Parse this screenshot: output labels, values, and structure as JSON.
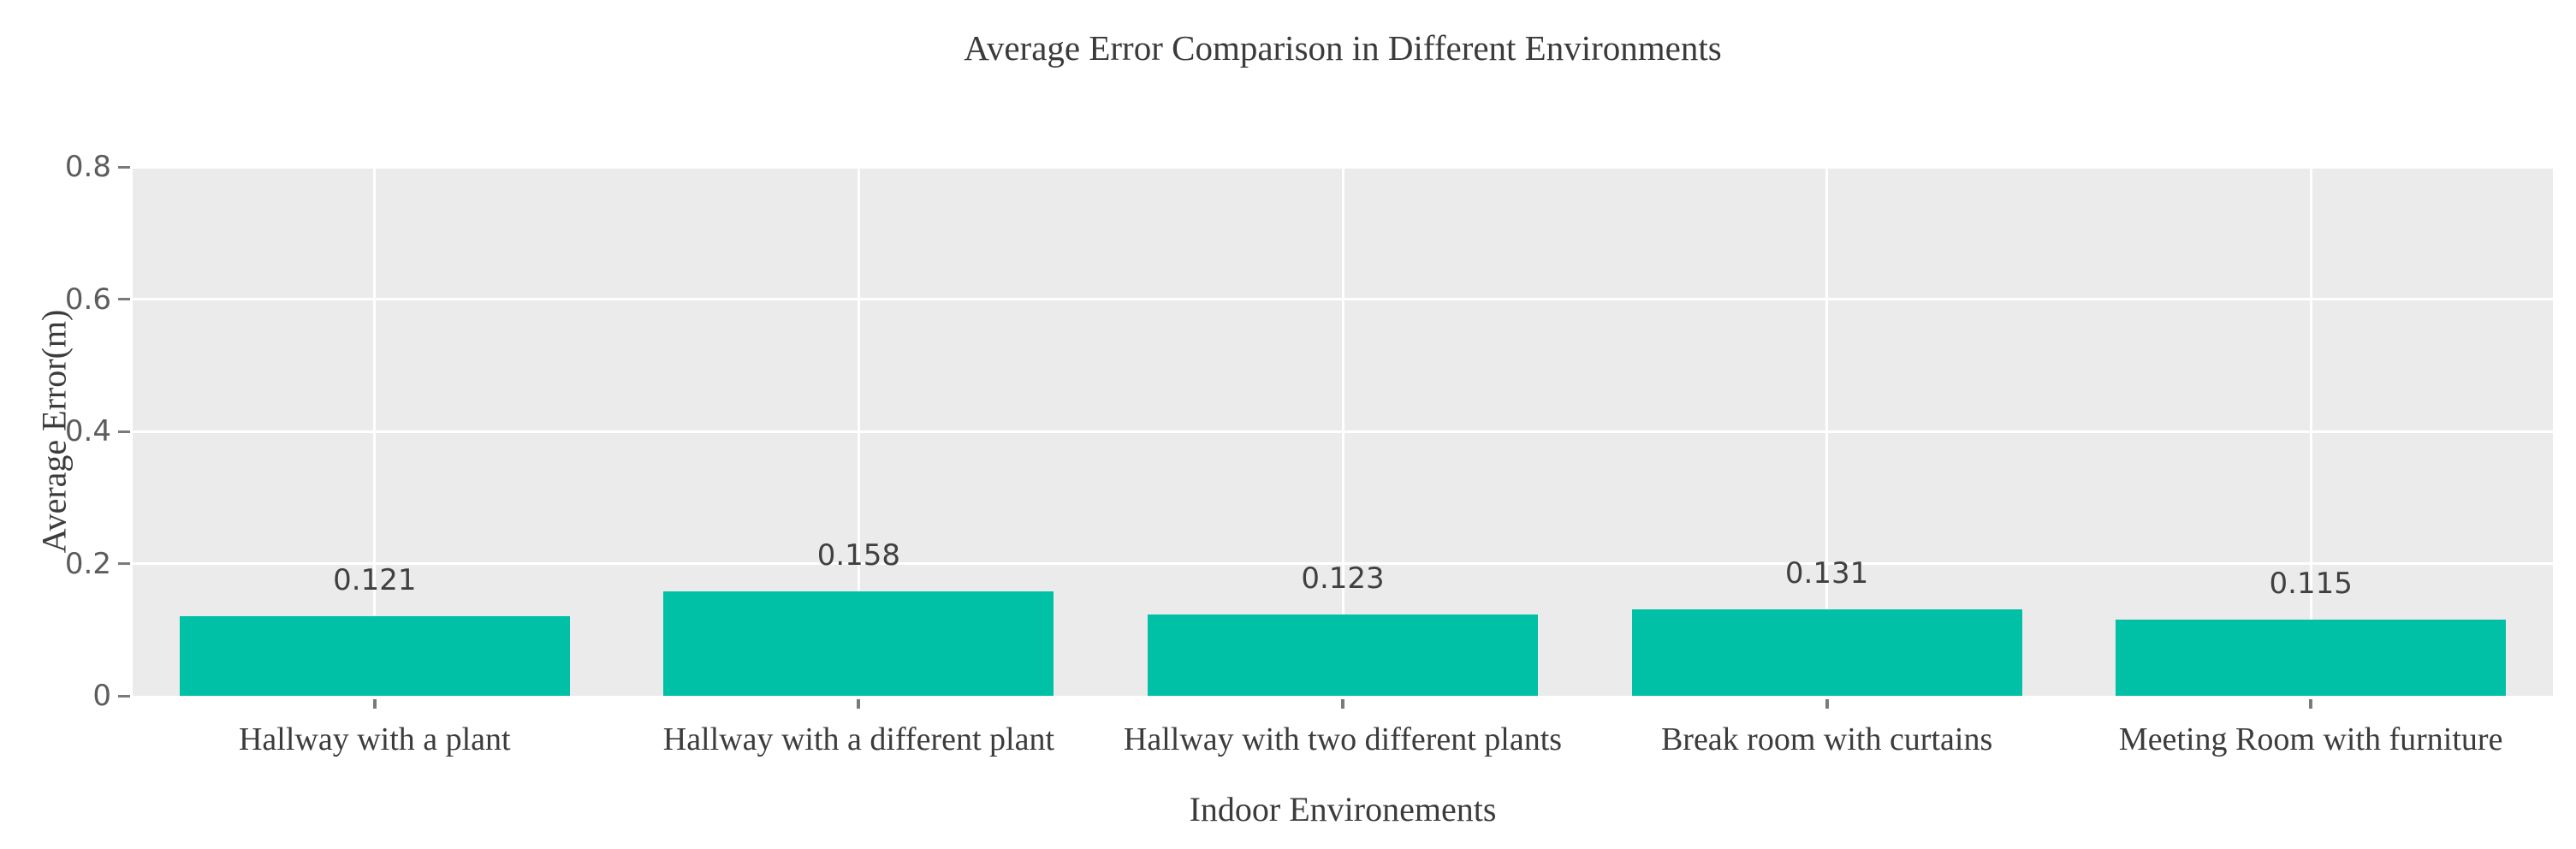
{
  "chart_data": {
    "type": "bar",
    "title": "Average Error Comparison in Different Environments",
    "xlabel": "Indoor Environements",
    "ylabel": "Average Error(m)",
    "categories": [
      "Hallway with a plant",
      "Hallway with a different plant",
      "Hallway with two different plants",
      "Break room with curtains",
      "Meeting Room with furniture"
    ],
    "values": [
      0.121,
      0.158,
      0.123,
      0.131,
      0.115
    ],
    "value_labels": [
      "0.121",
      "0.158",
      "0.123",
      "0.131",
      "0.115"
    ],
    "ylim": [
      0,
      0.8
    ],
    "yticks": [
      "0",
      "0.2",
      "0.4",
      "0.6",
      "0.8"
    ],
    "grid": "major white gridlines (horizontal at y ticks, vertical at category centers) on gray panel",
    "legend_position": "none",
    "colors": {
      "bar": "#00c0a5",
      "panel_bg": "#ebebeb",
      "gridline": "#ffffff",
      "tick_mark": "#7a7a7a",
      "tick_text": "#5c5c5c",
      "value_text": "#404040",
      "label_text": "#3c3c3c",
      "page_bg": "#ffffff"
    }
  }
}
